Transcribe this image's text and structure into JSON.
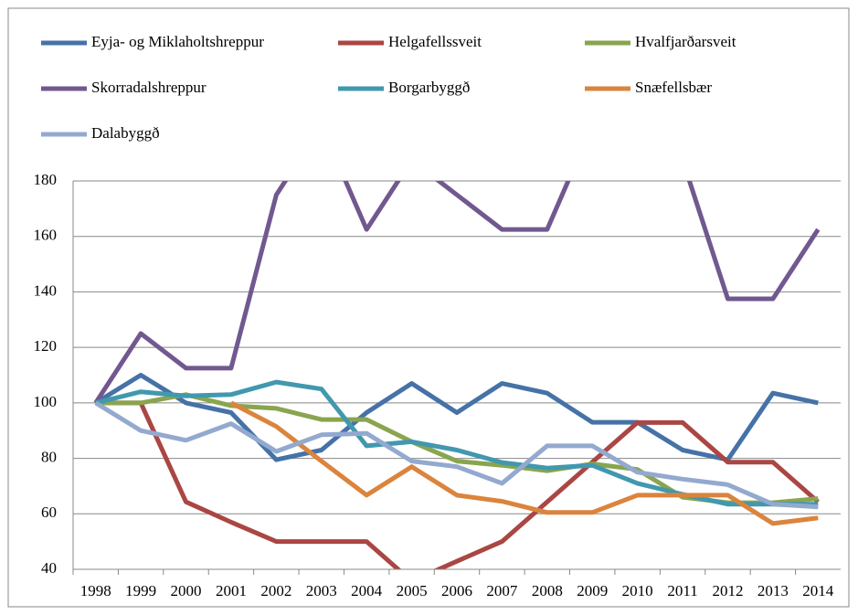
{
  "chart_data": {
    "type": "line",
    "categories": [
      "1998",
      "1999",
      "2000",
      "2001",
      "2002",
      "2003",
      "2004",
      "2005",
      "2006",
      "2007",
      "2008",
      "2009",
      "2010",
      "2011",
      "2012",
      "2013",
      "2014"
    ],
    "series": [
      {
        "name": "Eyja- og Miklaholtshreppur",
        "color": "#4572a7",
        "values": [
          100,
          110,
          100,
          96.5,
          79.5,
          83,
          96.5,
          107,
          96.5,
          107,
          103.5,
          93,
          93,
          83,
          79.5,
          103.5,
          100
        ]
      },
      {
        "name": "Helgafellssveit",
        "color": "#aa4643",
        "values": [
          100,
          100,
          64.3,
          57,
          50,
          50,
          50,
          35.7,
          42.9,
          50,
          64.3,
          78.6,
          92.9,
          92.9,
          78.6,
          78.6,
          64.3
        ]
      },
      {
        "name": "Hvalfjarðarsveit",
        "color": "#89a54e",
        "values": [
          100,
          100,
          103,
          99,
          98,
          94,
          94,
          86,
          79,
          77.5,
          75.5,
          78,
          76,
          66,
          64,
          64,
          65.5
        ]
      },
      {
        "name": "Skorradalshreppur",
        "color": "#71588f",
        "values": [
          100,
          125,
          112.5,
          112.5,
          175,
          200,
          162.5,
          187.5,
          175,
          162.5,
          162.5,
          200,
          200,
          187.5,
          137.5,
          137.5,
          162.5
        ]
      },
      {
        "name": "Borgarbyggð",
        "color": "#4198af",
        "values": [
          100,
          104,
          102.5,
          103,
          107.5,
          105,
          84.5,
          86,
          83,
          78.5,
          76.5,
          77.5,
          71,
          67,
          63.5,
          63.5,
          63.5
        ]
      },
      {
        "name": "Snæfellsbær",
        "color": "#db843d",
        "values": [
          null,
          null,
          null,
          100,
          91.5,
          79,
          66.7,
          77,
          66.7,
          64.5,
          60.5,
          60.5,
          66.7,
          66.7,
          66.7,
          56.5,
          58.5
        ]
      },
      {
        "name": "Dalabyggð",
        "color": "#93a9cf",
        "values": [
          100,
          90,
          86.5,
          92.5,
          82.5,
          88.5,
          89,
          79,
          77,
          71,
          84.5,
          84.5,
          75,
          72.5,
          70.5,
          63.5,
          62.5
        ]
      }
    ],
    "ylim": [
      40,
      180
    ],
    "yticks": [
      40,
      60,
      80,
      100,
      120,
      140,
      160,
      180
    ],
    "grid": true
  }
}
